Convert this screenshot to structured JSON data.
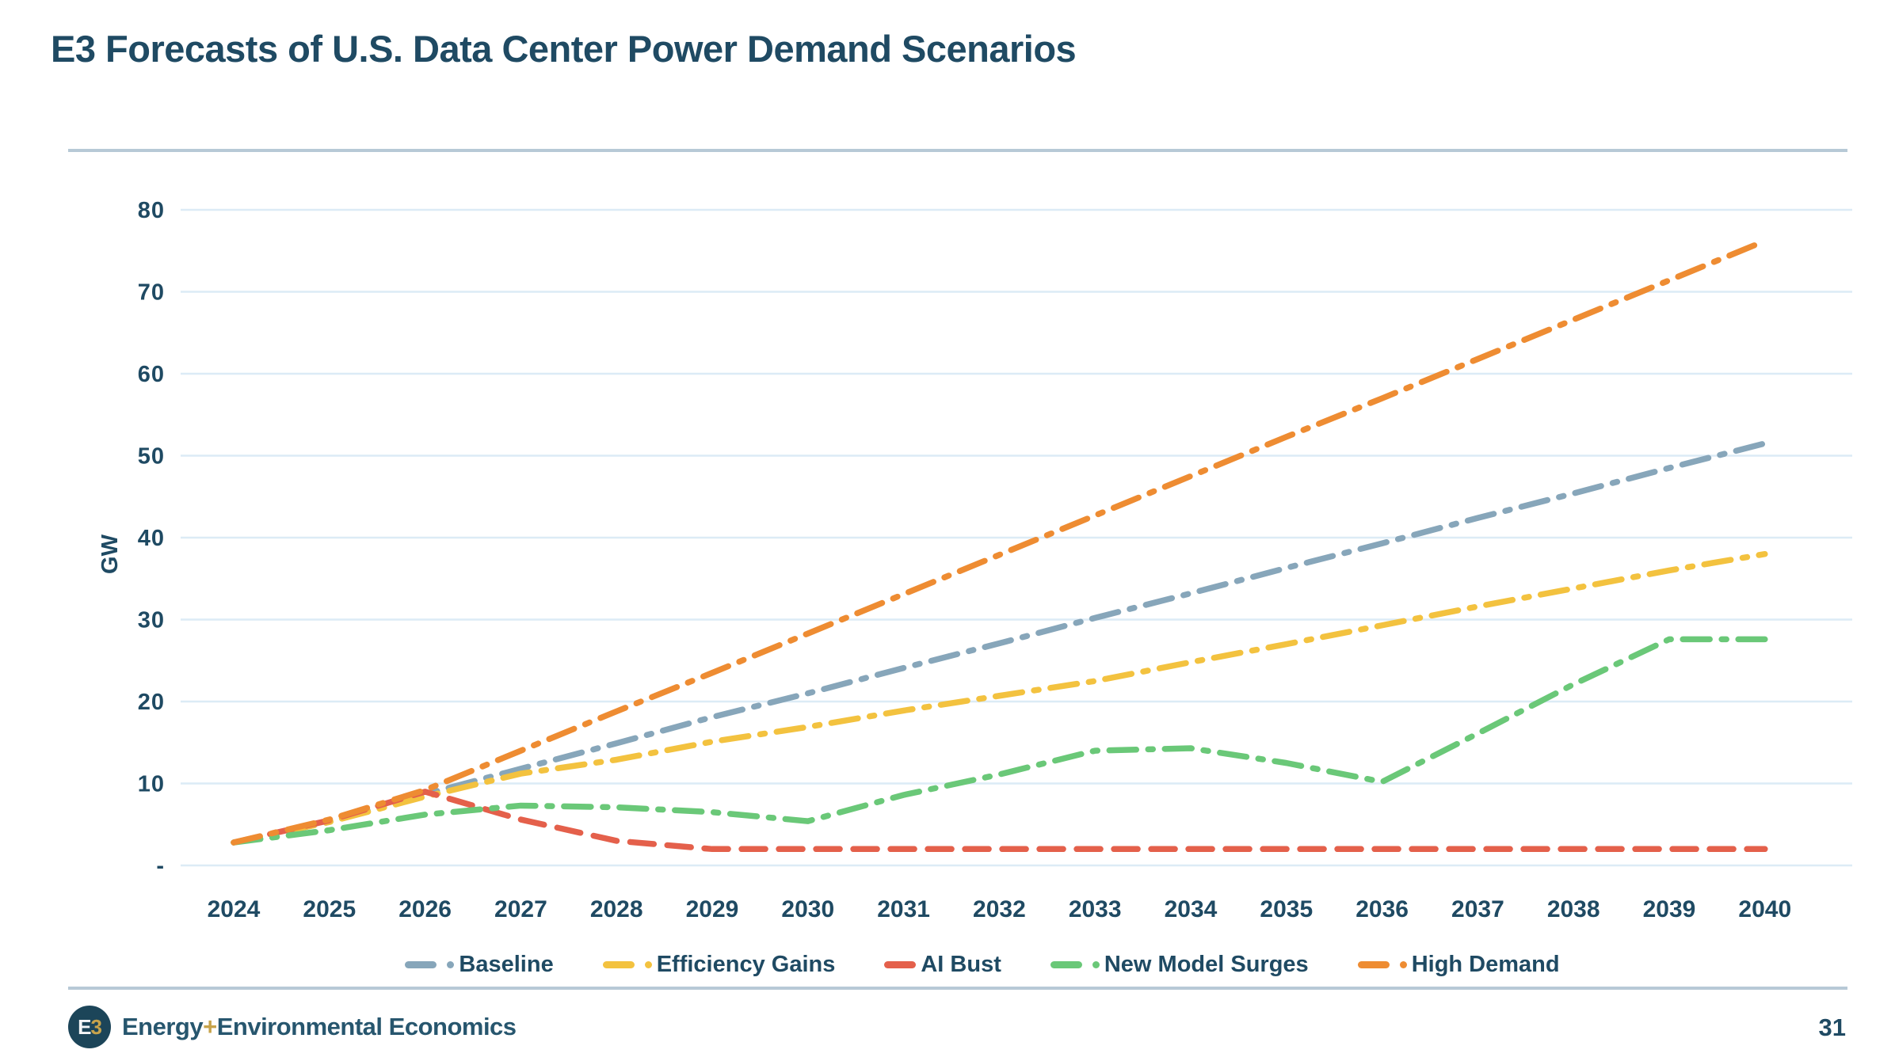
{
  "title": "E3 Forecasts of U.S. Data Center Power Demand Scenarios",
  "page_number": "31",
  "footer": {
    "logo_e": "E",
    "logo_3": "3",
    "brand_energy": "Energy",
    "brand_plus": "+",
    "brand_rest": "Environmental Economics"
  },
  "colors": {
    "title_text": "#1F4A63",
    "gridline": "#DCEBF6",
    "divider": "#B7C9D6",
    "logo_background": "#1C4559",
    "logo_gold": "#C7A34B"
  },
  "chart_data": {
    "type": "line",
    "title": "E3 Forecasts of U.S. Data Center Power Demand Scenarios",
    "xlabel": "",
    "ylabel": "GW",
    "x": [
      2024,
      2025,
      2026,
      2027,
      2028,
      2029,
      2030,
      2031,
      2032,
      2033,
      2034,
      2035,
      2036,
      2037,
      2038,
      2039,
      2040
    ],
    "x_tick_labels": [
      "2024",
      "2025",
      "2026",
      "2027",
      "2028",
      "2029",
      "2030",
      "2031",
      "2032",
      "2033",
      "2034",
      "2035",
      "2036",
      "2037",
      "2038",
      "2039",
      "2040"
    ],
    "y_ticks": [
      {
        "v": 80,
        "label": "80"
      },
      {
        "v": 70,
        "label": "70"
      },
      {
        "v": 60,
        "label": "60"
      },
      {
        "v": 50,
        "label": "50"
      },
      {
        "v": 40,
        "label": "40"
      },
      {
        "v": 30,
        "label": "30"
      },
      {
        "v": 20,
        "label": "20"
      },
      {
        "v": 10,
        "label": "10"
      },
      {
        "v": 0,
        "label": "-"
      }
    ],
    "ylim": [
      0,
      85
    ],
    "grid": true,
    "legend_position": "bottom",
    "series": [
      {
        "name": "Baseline",
        "color": "#87A6BA",
        "dash": "long-dash-dot",
        "values": [
          2.8,
          5.3,
          8.7,
          11.8,
          14.9,
          18.1,
          21.0,
          24.1,
          27.1,
          30.2,
          33.2,
          36.3,
          39.3,
          42.4,
          45.4,
          48.5,
          51.5
        ]
      },
      {
        "name": "Efficiency Gains",
        "color": "#F3C23F",
        "dash": "long-dash-dot",
        "values": [
          2.8,
          5.3,
          8.4,
          11.2,
          12.9,
          15.1,
          16.9,
          18.9,
          20.7,
          22.5,
          24.8,
          27.0,
          29.3,
          31.6,
          33.8,
          36.0,
          38.0
        ]
      },
      {
        "name": "AI Bust",
        "color": "#E4604B",
        "dash": "long-dash",
        "values": [
          2.8,
          5.5,
          9.0,
          5.6,
          3.0,
          2.0,
          2.0,
          2.0,
          2.0,
          2.0,
          2.0,
          2.0,
          2.0,
          2.0,
          2.0,
          2.0,
          2.0
        ]
      },
      {
        "name": "New Model Surges",
        "color": "#6AC878",
        "dash": "long-dash-dot",
        "values": [
          2.8,
          4.3,
          6.2,
          7.3,
          7.1,
          6.5,
          5.4,
          8.6,
          11.1,
          14.0,
          14.3,
          12.5,
          10.2,
          16.1,
          22.1,
          27.6,
          27.6
        ]
      },
      {
        "name": "High Demand",
        "color": "#EE8C32",
        "dash": "long-dash-dot",
        "values": [
          2.8,
          5.6,
          9.2,
          14.0,
          18.8,
          23.5,
          28.3,
          33.1,
          37.9,
          42.7,
          47.5,
          52.3,
          57.0,
          61.8,
          66.6,
          71.4,
          76.2
        ]
      }
    ]
  }
}
